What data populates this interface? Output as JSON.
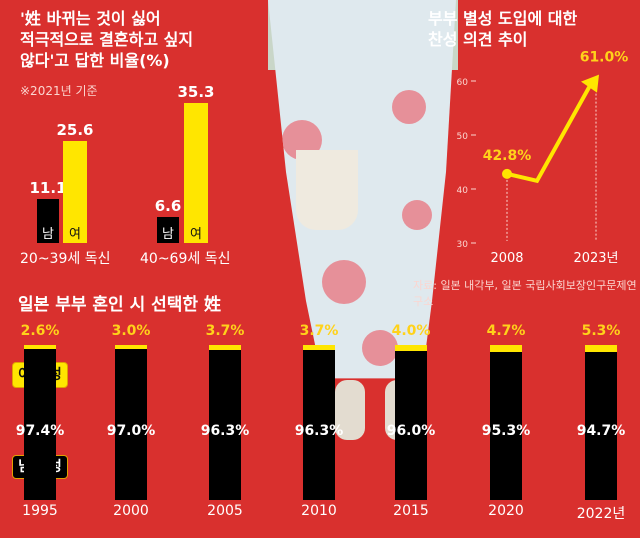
{
  "colors": {
    "background": "#d9302e",
    "male": "#000000",
    "female": "#ffe600",
    "accent": "#ffd21a"
  },
  "left_chart": {
    "title_lines": [
      "'姓 바뀌는 것이 싫어",
      "적극적으로 결혼하고 싶지",
      "않다'고 답한 비율(%)"
    ],
    "note": "※2021년 기준"
  },
  "right_chart": {
    "title_lines": [
      "부부 별성 도입에 대한",
      "찬성 의견 추이"
    ],
    "source": "자료: 일본 내각부, 일본 국립사회보장인구문제연구소"
  },
  "bottom_chart": {
    "title": "일본 부부 혼인 시 선택한 姓",
    "wife_label": "아내 성",
    "husband_label": "남편 성"
  },
  "chart_data": [
    {
      "type": "bar",
      "title": "'姓 바뀌는 것이 싫어 적극적으로 결혼하고 싶지 않다'고 답한 비율(%)",
      "categories": [
        "20~39세 독신",
        "40~69세 독신"
      ],
      "series": [
        {
          "name": "남",
          "values": [
            11.1,
            6.6
          ]
        },
        {
          "name": "여",
          "values": [
            25.6,
            35.3
          ]
        }
      ],
      "value_labels": [
        [
          "11.1",
          "6.6"
        ],
        [
          "25.6",
          "35.3"
        ]
      ]
    },
    {
      "type": "line",
      "title": "부부 별성 도입에 대한 찬성 의견 추이",
      "x": [
        "2008",
        "2023년"
      ],
      "y": [
        42.8,
        61.0
      ],
      "value_labels": [
        "42.8%",
        "61.0%"
      ],
      "yticks": [
        "30",
        "40",
        "50",
        "60"
      ],
      "ylim": [
        30,
        60
      ]
    },
    {
      "type": "bar",
      "title": "일본 부부 혼인 시 선택한 姓",
      "categories": [
        "1995",
        "2000",
        "2005",
        "2010",
        "2015",
        "2020",
        "2022년"
      ],
      "series": [
        {
          "name": "아내 성",
          "values": [
            2.6,
            3.0,
            3.7,
            3.7,
            4.0,
            4.7,
            5.3
          ],
          "labels": [
            "2.6%",
            "3.0%",
            "3.7%",
            "3.7%",
            "4.0%",
            "4.7%",
            "5.3%"
          ]
        },
        {
          "name": "남편 성",
          "values": [
            97.4,
            97.0,
            96.3,
            96.3,
            96.0,
            95.3,
            94.7
          ],
          "labels": [
            "97.4%",
            "97.0%",
            "96.3%",
            "96.3%",
            "96.0%",
            "95.3%",
            "94.7%"
          ]
        }
      ]
    }
  ]
}
